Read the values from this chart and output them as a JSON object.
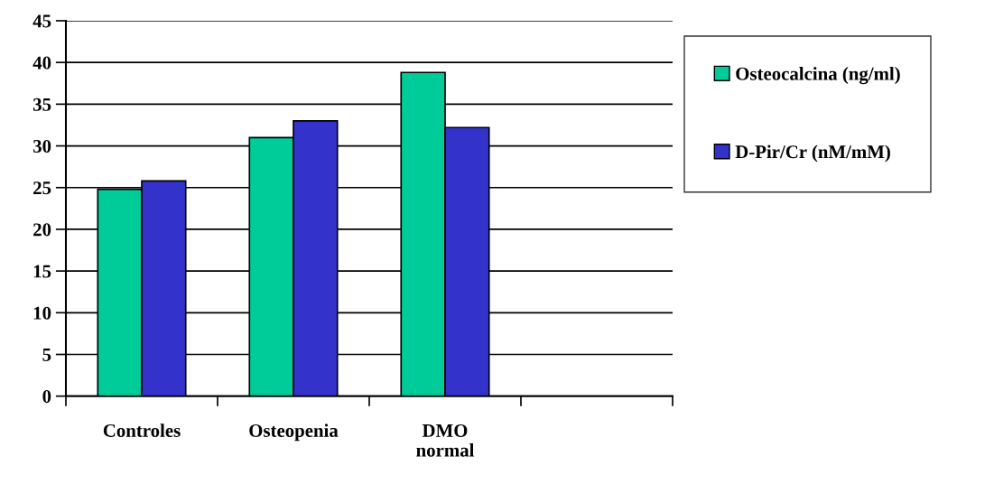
{
  "chart_data": {
    "type": "bar",
    "categories": [
      "Controles",
      "Osteopenia",
      "DMO\nnormal",
      null
    ],
    "series": [
      {
        "name": "Osteocalcina (ng/ml)",
        "color": "#00cc99",
        "values": [
          24.8,
          31.0,
          38.8,
          null
        ]
      },
      {
        "name": "D-Pir/Cr (nM/mM)",
        "color": "#3333cc",
        "values": [
          25.8,
          33.0,
          32.2,
          null
        ]
      }
    ],
    "ylim": [
      0,
      45
    ],
    "yticks": [
      0,
      5,
      10,
      15,
      20,
      25,
      30,
      35,
      40,
      45
    ],
    "grid": "y",
    "legend": "right"
  }
}
